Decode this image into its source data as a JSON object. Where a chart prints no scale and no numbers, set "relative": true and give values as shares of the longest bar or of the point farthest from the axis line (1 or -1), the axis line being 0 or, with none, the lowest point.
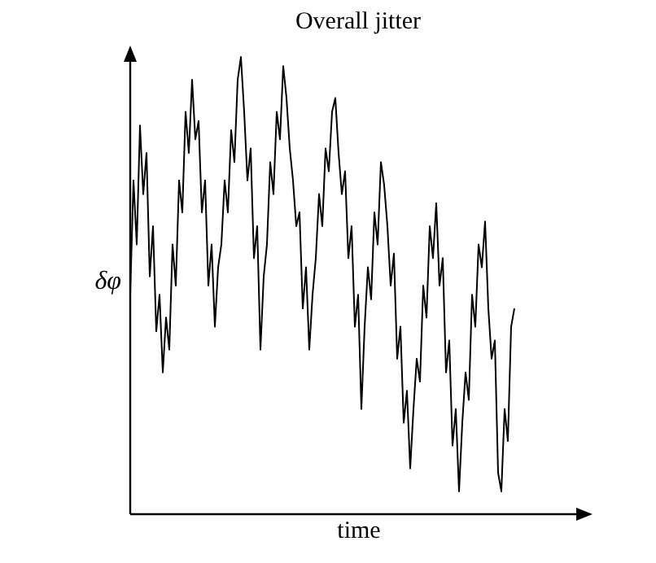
{
  "chart_data": {
    "type": "line",
    "title": "Overall jitter",
    "xlabel": "time",
    "ylabel": "δφ",
    "relative": true,
    "grid": false,
    "marker": "none",
    "line_style": "solid",
    "categories": [
      null,
      null,
      null,
      null,
      null,
      null,
      null,
      null,
      null,
      null,
      null,
      null,
      null,
      null,
      null,
      null,
      null,
      null,
      null,
      null,
      null,
      null,
      null,
      null,
      null,
      null,
      null,
      null,
      null,
      null,
      null,
      null,
      null,
      null,
      null,
      null,
      null,
      null,
      null,
      null,
      null,
      null,
      null,
      null,
      null,
      null,
      null,
      null,
      null,
      null,
      null,
      null,
      null,
      null,
      null,
      null,
      null,
      null,
      null,
      null,
      null,
      null,
      null,
      null,
      null,
      null,
      null,
      null,
      null,
      null,
      null,
      null,
      null,
      null,
      null,
      null,
      null,
      null,
      null,
      null,
      null,
      null,
      null,
      null,
      null,
      null,
      null,
      null,
      null,
      null,
      null,
      null,
      null,
      null,
      null,
      null,
      null,
      null,
      null,
      null,
      null,
      null,
      null,
      null,
      null,
      null,
      null,
      null,
      null,
      null,
      null,
      null,
      null,
      null,
      null,
      null,
      null,
      null,
      null
    ],
    "series": [
      {
        "color": "#000000",
        "values": [
          0.48,
          0.73,
          0.59,
          0.85,
          0.7,
          0.79,
          0.52,
          0.63,
          0.4,
          0.48,
          0.31,
          0.43,
          0.36,
          0.59,
          0.5,
          0.73,
          0.66,
          0.88,
          0.79,
          0.95,
          0.82,
          0.86,
          0.66,
          0.73,
          0.5,
          0.59,
          0.41,
          0.54,
          0.59,
          0.73,
          0.66,
          0.84,
          0.77,
          0.95,
          1,
          0.88,
          0.73,
          0.8,
          0.56,
          0.63,
          0.36,
          0.52,
          0.59,
          0.77,
          0.7,
          0.88,
          0.82,
          0.98,
          0.91,
          0.8,
          0.73,
          0.63,
          0.66,
          0.45,
          0.54,
          0.36,
          0.48,
          0.56,
          0.7,
          0.63,
          0.8,
          0.75,
          0.88,
          0.91,
          0.79,
          0.7,
          0.75,
          0.56,
          0.63,
          0.41,
          0.48,
          0.23,
          0.41,
          0.54,
          0.47,
          0.66,
          0.59,
          0.77,
          0.72,
          0.63,
          0.5,
          0.57,
          0.34,
          0.41,
          0.2,
          0.27,
          0.1,
          0.23,
          0.34,
          0.29,
          0.5,
          0.43,
          0.63,
          0.56,
          0.68,
          0.5,
          0.56,
          0.31,
          0.38,
          0.15,
          0.23,
          0.05,
          0.2,
          0.31,
          0.25,
          0.48,
          0.41,
          0.59,
          0.54,
          0.64,
          0.45,
          0.34,
          0.38,
          0.09,
          0.05,
          0.23,
          0.16,
          0.41,
          0.45
        ]
      }
    ]
  }
}
